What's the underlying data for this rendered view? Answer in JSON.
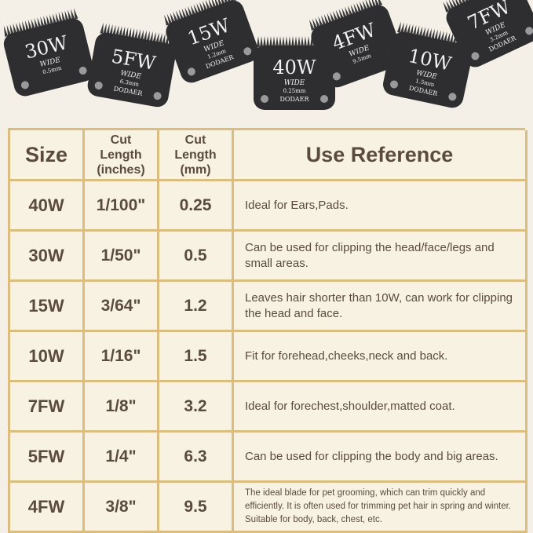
{
  "blades": [
    {
      "size": "30W",
      "wide": "WIDE",
      "mm": "0.5mm"
    },
    {
      "size": "5FW",
      "wide": "WIDE",
      "mm": "6.3mm",
      "brand": "DODAER"
    },
    {
      "size": "15W",
      "wide": "WIDE",
      "mm": "1.2mm",
      "brand": "DODAER"
    },
    {
      "size": "40W",
      "wide": "WIDE",
      "mm": "0.25mm",
      "brand": "DODAER"
    },
    {
      "size": "4FW",
      "wide": "WIDE",
      "mm": "9.5mm"
    },
    {
      "size": "10W",
      "wide": "WIDE",
      "mm": "1.5mm",
      "brand": "DODAER"
    },
    {
      "size": "7FW",
      "wide": "WIDE",
      "mm": "3.2mm",
      "brand": "DODAER"
    }
  ],
  "table": {
    "header": [
      "Size",
      "Cut\nLength\n(inches)",
      "Cut\nLength\n(mm)",
      "Use Reference"
    ],
    "rows": [
      [
        "40W",
        "1/100\"",
        "0.25",
        "Ideal for Ears,Pads."
      ],
      [
        "30W",
        "1/50\"",
        "0.5",
        "Can be used for clipping the head/face/legs and small areas."
      ],
      [
        "15W",
        "3/64\"",
        "1.2",
        "Leaves hair shorter than 10W, can work for clipping the head and face."
      ],
      [
        "10W",
        "1/16\"",
        "1.5",
        "Fit for forehead,cheeks,neck and back."
      ],
      [
        "7FW",
        "1/8\"",
        "3.2",
        "Ideal for forechest,shoulder,matted coat."
      ],
      [
        "5FW",
        "1/4\"",
        "6.3",
        "Can be used for clipping the body and big areas."
      ],
      [
        "4FW",
        "3/8\"",
        "9.5",
        "The ideal blade for pet grooming, which can trim quickly and efficiently. It is often used for trimming pet hair in spring and winter. Suitable for body, back, chest, etc."
      ]
    ]
  }
}
